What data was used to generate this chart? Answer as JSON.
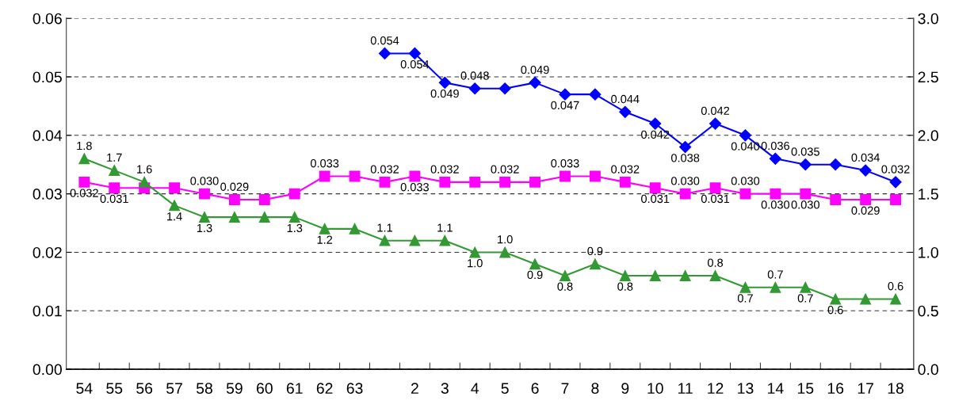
{
  "chart_data": {
    "type": "line",
    "categories": [
      "54",
      "55",
      "56",
      "57",
      "58",
      "59",
      "60",
      "61",
      "62",
      "63",
      null,
      "2",
      "3",
      "4",
      "5",
      "6",
      "7",
      "8",
      "9",
      "10",
      "11",
      "12",
      "13",
      "14",
      "15",
      "16",
      "17",
      "18"
    ],
    "series": [
      {
        "color": "#0000ff",
        "marker": "diamond",
        "values": [
          null,
          null,
          null,
          null,
          null,
          null,
          null,
          null,
          null,
          null,
          0.054,
          0.054,
          0.049,
          0.048,
          0.048,
          0.049,
          0.047,
          0.047,
          0.044,
          0.042,
          0.038,
          0.042,
          0.04,
          0.036,
          0.035,
          0.035,
          0.034,
          0.032
        ],
        "value_labels": [
          null,
          null,
          null,
          null,
          null,
          null,
          null,
          null,
          null,
          null,
          "0.054",
          "0.054",
          "0.049",
          "0.048",
          null,
          "0.049",
          "0.047",
          null,
          "0.044",
          "0.042",
          "0.038",
          "0.042",
          "0.040",
          "0.036",
          "0.035",
          null,
          "0.034",
          "0.032"
        ]
      },
      {
        "color": "#ff00ff",
        "marker": "square",
        "values": [
          0.032,
          0.031,
          0.031,
          0.031,
          0.03,
          0.029,
          0.029,
          0.03,
          0.033,
          0.033,
          0.032,
          0.033,
          0.032,
          0.032,
          0.032,
          0.032,
          0.033,
          0.033,
          0.032,
          0.031,
          0.03,
          0.031,
          0.03,
          0.03,
          0.03,
          0.029,
          0.029,
          0.029
        ],
        "value_labels": [
          "0.032",
          "0.031",
          null,
          null,
          "0.030",
          "0.029",
          null,
          null,
          "0.033",
          null,
          "0.032",
          "0.033",
          "0.032",
          null,
          "0.032",
          null,
          "0.033",
          null,
          "0.032",
          "0.031",
          "0.030",
          "0.031",
          "0.030",
          "0.030",
          "0.030",
          null,
          "0.029",
          null
        ]
      },
      {
        "color": "#339933",
        "marker": "triangle",
        "axis": "y2",
        "values": [
          1.8,
          1.7,
          1.6,
          1.4,
          1.3,
          1.3,
          1.3,
          1.3,
          1.2,
          1.2,
          1.1,
          1.1,
          1.1,
          1.0,
          1.0,
          0.9,
          0.8,
          0.9,
          0.8,
          0.8,
          0.8,
          0.8,
          0.7,
          0.7,
          0.7,
          0.6,
          0.6,
          0.6
        ],
        "value_labels": [
          "1.8",
          "1.7",
          "1.6",
          "1.4",
          "1.3",
          null,
          null,
          "1.3",
          "1.2",
          null,
          "1.1",
          null,
          "1.1",
          "1.0",
          "1.0",
          "0.9",
          "0.8",
          "0.9",
          "0.8",
          null,
          null,
          "0.8",
          "0.7",
          "0.7",
          "0.7",
          "0.6",
          null,
          "0.6"
        ]
      }
    ],
    "ylim": [
      0,
      0.06
    ],
    "yticks": [
      {
        "value": 0,
        "label": "0.00"
      },
      {
        "value": 0.01,
        "label": "0.01"
      },
      {
        "value": 0.02,
        "label": "0.02"
      },
      {
        "value": 0.03,
        "label": "0.03"
      },
      {
        "value": 0.04,
        "label": "0.04"
      },
      {
        "value": 0.05,
        "label": "0.05"
      },
      {
        "value": 0.06,
        "label": "0.06"
      }
    ],
    "y2lim": [
      0,
      3.0
    ],
    "y2ticks": [
      {
        "value": 0,
        "label": "0.0"
      },
      {
        "value": 0.5,
        "label": "0.5"
      },
      {
        "value": 1.0,
        "label": "1.0"
      },
      {
        "value": 1.5,
        "label": "1.5"
      },
      {
        "value": 2.0,
        "label": "2.0"
      },
      {
        "value": 2.5,
        "label": "2.5"
      },
      {
        "value": 3.0,
        "label": "3.0"
      }
    ],
    "grid": "y",
    "line_style": "solid",
    "legend": false
  }
}
